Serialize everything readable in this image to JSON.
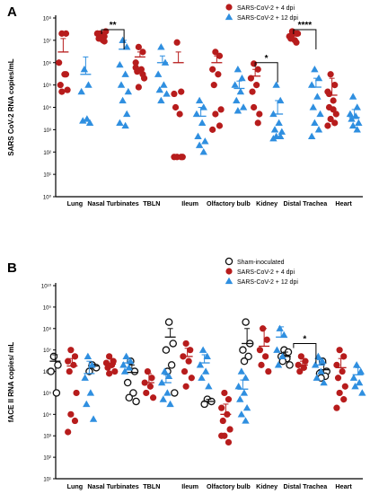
{
  "colors": {
    "red": "#b71c1c",
    "blue": "#2f8fe0",
    "sham": "#111111",
    "axis": "#000000"
  },
  "chart_data": [
    {
      "panel": "A",
      "type": "scatter",
      "ylabel": "SARS CoV-2 RNA copies/mL",
      "scale": "log",
      "ylim": [
        1,
        100000000
      ],
      "yticks": [
        "10⁰",
        "10¹",
        "10²",
        "10³",
        "10⁴",
        "10⁵",
        "10⁶",
        "10⁷",
        "10⁸"
      ],
      "categories": [
        "Lung",
        "Nasal Turbinates",
        "TBLN",
        "Ileum",
        "Olfactory bulb",
        "Kidney",
        "Distal Trachea",
        "Heart"
      ],
      "legend": [
        {
          "name": "SARS-CoV-2 + 4 dpi",
          "color": "#b71c1c",
          "marker": "circle"
        },
        {
          "name": "SARS-CoV-2 + 12 dpi",
          "color": "#2f8fe0",
          "marker": "triangle"
        }
      ],
      "series": [
        {
          "key": "dpi4",
          "marker": "circle",
          "color": "#b71c1c",
          "points": [
            [
              20000000.0,
              20000000.0,
              1000000.0,
              300000.0,
              100000.0,
              60000.0,
              50000.0,
              300000.0
            ],
            [
              20000000.0,
              15000000.0,
              20000000.0,
              10000000.0,
              12000000.0,
              25000000.0,
              18000000.0,
              9000000.0,
              20000000.0
            ],
            [
              5000000.0,
              3000000.0,
              1000000.0,
              500000.0,
              400000.0,
              200000.0,
              80000.0,
              300000.0,
              600000.0
            ],
            [
              8000000.0,
              50000.0,
              40000.0,
              5000.0,
              10000.0,
              60.0,
              60.0,
              60.0,
              60.0
            ],
            [
              3000000.0,
              2000000.0,
              500000.0,
              300000.0,
              100000.0,
              8000.0,
              5000.0,
              1500.0,
              1000.0
            ],
            [
              900000.0,
              500000.0,
              200000.0,
              100000.0,
              50000.0,
              5000.0,
              10000.0,
              2000.0
            ],
            [
              25000000.0,
              20000000.0,
              15000000.0,
              10000000.0,
              12000000.0,
              20000000.0,
              18000000.0,
              8000000.0
            ],
            [
              300000.0,
              100000.0,
              50000.0,
              20000.0,
              10000.0,
              5000.0,
              3000.0,
              2000.0,
              1500.0,
              8000.0,
              40000.0
            ]
          ],
          "mean": [
            3000000.0,
            15000000.0,
            1800000.0,
            1000000.0,
            1000000.0,
            250000.0,
            16000000.0,
            35000.0
          ],
          "upper": [
            12000000.0,
            22000000.0,
            3000000.0,
            3000000.0,
            2000000.0,
            500000.0,
            20000000.0,
            200000.0
          ]
        },
        {
          "key": "dpi12",
          "marker": "triangle",
          "color": "#2f8fe0",
          "points": [
            [
              500000.0,
              100000.0,
              50000.0,
              3000.0,
              2500.0,
              2000.0
            ],
            [
              10000000.0,
              5000000.0,
              800000.0,
              300000.0,
              100000.0,
              50000.0,
              20000.0,
              5000.0,
              2000.0,
              1500.0
            ],
            [
              5000000.0,
              1000000.0,
              300000.0,
              100000.0,
              60000.0,
              40000.0,
              20000.0
            ],
            [
              20000.0,
              10000.0,
              5000.0,
              2000.0,
              500.0,
              300.0,
              200.0,
              100.0
            ],
            [
              500000.0,
              200000.0,
              100000.0,
              50000.0,
              20000.0,
              10000.0,
              7000.0
            ],
            [
              100000.0,
              20000.0,
              5000.0,
              2000.0,
              1000.0,
              800.0,
              500.0,
              500.0,
              400.0
            ],
            [
              500000.0,
              200000.0,
              100000.0,
              30000.0,
              10000.0,
              5000.0,
              2000.0,
              1000.0,
              500.0
            ],
            [
              30000.0,
              10000.0,
              5000.0,
              4000.0,
              3000.0,
              2000.0,
              1500.0,
              1000.0
            ]
          ],
          "mean": [
            300000.0,
            4000000.0,
            1000000.0,
            4000.0,
            70000.0,
            5000.0,
            80000.0,
            3500.0
          ],
          "upper": [
            1800000.0,
            10000000.0,
            2000000.0,
            10000.0,
            150000.0,
            20000.0,
            200000.0,
            8000.0
          ]
        }
      ],
      "annotations": [
        {
          "text": "**",
          "category": 1,
          "y": 30000000.0
        },
        {
          "text": "*",
          "category": 5,
          "y": 1000000.0
        },
        {
          "text": "****",
          "category": 6,
          "y": 30000000.0
        }
      ]
    },
    {
      "panel": "B",
      "type": "scatter",
      "ylabel": "fACE II RNA copies/ mL",
      "scale": "log",
      "ylim": [
        10,
        10000000000.0
      ],
      "yticks": [
        "10¹",
        "10²",
        "10³",
        "10⁴",
        "10⁵",
        "10⁶",
        "10⁷",
        "10⁸",
        "10⁹",
        "10¹⁰"
      ],
      "categories": [
        "Lung",
        "Nasal Turbinates",
        "TBLN",
        "Ileum",
        "Olfactory bulb",
        "Kidney",
        "Distal Trachea",
        "Heart"
      ],
      "legend": [
        {
          "name": "Sham-inoculated",
          "color": "#111111",
          "marker": "open-circle"
        },
        {
          "name": "SARS-CoV-2 + 4 dpi",
          "color": "#b71c1c",
          "marker": "circle"
        },
        {
          "name": "SARS-CoV-2 + 12 dpi",
          "color": "#2f8fe0",
          "marker": "triangle"
        }
      ],
      "series": [
        {
          "key": "sham",
          "marker": "open-circle",
          "color": "#111111",
          "points": [
            [
              5000000.0,
              2000000.0,
              1000000.0,
              100000.0
            ],
            [
              2000000.0,
              1500000.0,
              1000000.0
            ],
            [
              3000000.0,
              1000000.0,
              300000.0,
              100000.0,
              60000.0,
              40000.0
            ],
            [
              200000000.0,
              20000000.0,
              10000000.0,
              2000000.0,
              1000000.0,
              100000.0
            ],
            [
              50000.0,
              40000.0,
              30000.0
            ],
            [
              200000000.0,
              20000000.0,
              10000000.0,
              5000000.0,
              3000000.0
            ],
            [
              10000000.0,
              8000000.0,
              5000000.0,
              4000000.0,
              3000000.0,
              2000000.0
            ],
            [
              3000000.0,
              1000000.0,
              800000.0,
              600000.0,
              500000.0
            ]
          ],
          "mean": [
            3000000.0,
            1800000.0,
            900000.0,
            40000000.0,
            40000.0,
            20000000.0,
            5000000.0,
            1200000.0
          ],
          "upper": [
            6000000.0,
            2200000.0,
            2000000.0,
            100000000.0,
            50000.0,
            100000000.0,
            8000000.0,
            2500000.0
          ]
        },
        {
          "key": "dpi4",
          "marker": "circle",
          "color": "#b71c1c",
          "points": [
            [
              10000000.0,
              5000000.0,
              3000000.0,
              2000000.0,
              1000000.0,
              100000.0,
              10000.0,
              5000.0,
              1500.0
            ],
            [
              5000000.0,
              3000000.0,
              2500000.0,
              2000000.0,
              1500000.0,
              1000000.0,
              800000.0
            ],
            [
              1000000.0,
              500000.0,
              300000.0,
              200000.0,
              100000.0,
              60000.0
            ],
            [
              20000000.0,
              10000000.0,
              5000000.0,
              3000000.0,
              1000000.0,
              500000.0,
              200000.0
            ],
            [
              100000.0,
              50000.0,
              20000.0,
              10000.0,
              5000.0,
              2000.0,
              1000.0,
              500.0,
              1000.0
            ],
            [
              100000000.0,
              30000000.0,
              10000000.0,
              5000000.0,
              2000000.0,
              1000000.0
            ],
            [
              5000000.0,
              3000000.0,
              2000000.0,
              1500000.0,
              1000000.0
            ],
            [
              10000000.0,
              5000000.0,
              2000000.0,
              1000000.0,
              500000.0,
              200000.0,
              100000.0,
              50000.0,
              20000.0
            ]
          ],
          "mean": [
            1800000.0,
            2200000.0,
            300000.0,
            5000000.0,
            10000.0,
            15000000.0,
            2000000.0,
            1500000.0
          ],
          "upper": [
            4000000.0,
            4000000.0,
            800000.0,
            12000000.0,
            30000.0,
            100000000.0,
            3000000.0,
            4000000.0
          ]
        },
        {
          "key": "dpi12",
          "marker": "triangle",
          "color": "#2f8fe0",
          "points": [
            [
              5000000.0,
              2000000.0,
              500000.0,
              100000.0,
              30000.0,
              6000.0
            ],
            [
              5000000.0,
              3000000.0,
              2000000.0,
              1500000.0,
              1000000.0
            ],
            [
              1000000.0,
              600000.0,
              300000.0,
              100000.0,
              50000.0,
              30000.0
            ],
            [
              10000000.0,
              5000000.0,
              2000000.0,
              1000000.0,
              500000.0,
              200000.0
            ],
            [
              1000000.0,
              500000.0,
              200000.0,
              100000.0,
              50000.0,
              20000.0,
              10000.0,
              5000.0
            ],
            [
              100000000.0,
              50000000.0,
              10000000.0,
              5000000.0,
              2000000.0
            ],
            [
              5000000.0,
              3000000.0,
              2000000.0,
              1000000.0,
              500000.0,
              300000.0
            ],
            [
              2000000.0,
              1000000.0,
              500000.0,
              300000.0,
              200000.0,
              100000.0
            ]
          ],
          "mean": [
            800000.0,
            2500000.0,
            300000.0,
            2500000.0,
            150000.0,
            40000000.0,
            2000000.0,
            700000.0
          ],
          "upper": [
            3000000.0,
            4000000.0,
            700000.0,
            6000000.0,
            400000.0,
            120000000.0,
            3500000.0,
            1500000.0
          ]
        }
      ],
      "annotations": [
        {
          "text": "*",
          "category": 6,
          "y": 20000000.0
        }
      ]
    }
  ]
}
